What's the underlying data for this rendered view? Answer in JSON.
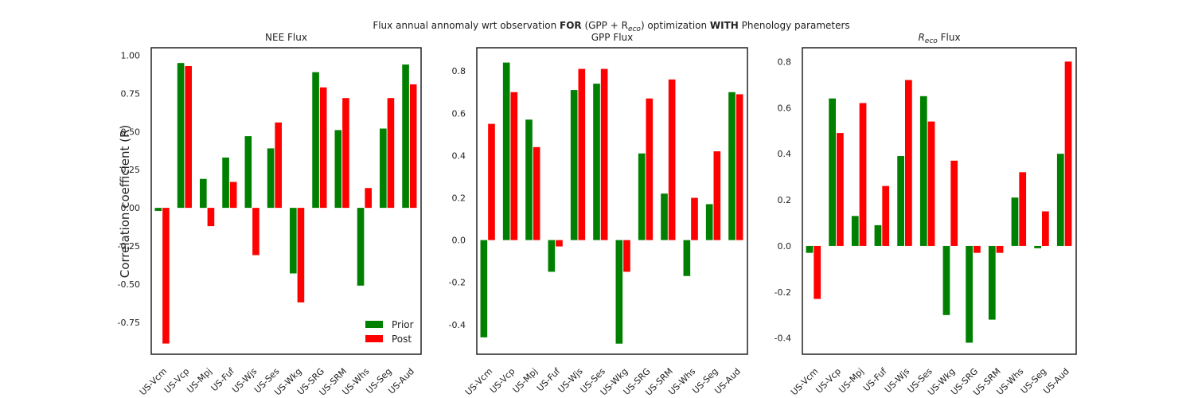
{
  "figure": {
    "suptitle_prefix": "Flux annual annomaly wrt observation ",
    "suptitle_bold1": "FOR",
    "suptitle_mid": " (GPP + R",
    "suptitle_sub": "eco",
    "suptitle_mid2": ") optimization ",
    "suptitle_bold2": "WITH",
    "suptitle_suffix": " Phenology parameters",
    "ylabel": "Correlation coefficient (R)"
  },
  "colors": {
    "prior": "#008000",
    "post": "#ff0000",
    "frame": "#222222"
  },
  "chart_data": [
    {
      "type": "bar",
      "title": "NEE Flux",
      "categories": [
        "US-Vcm",
        "US-Vcp",
        "US-Mpj",
        "US-Fuf",
        "US-Wjs",
        "US-Ses",
        "US-Wkg",
        "US-SRG",
        "US-SRM",
        "US-Whs",
        "US-Seg",
        "US-Aud"
      ],
      "series": [
        {
          "name": "Prior",
          "values": [
            -0.02,
            0.95,
            0.19,
            0.33,
            0.47,
            0.39,
            -0.43,
            0.89,
            0.51,
            -0.51,
            0.52,
            0.94
          ]
        },
        {
          "name": "Post",
          "values": [
            -0.89,
            0.93,
            -0.12,
            0.17,
            -0.31,
            0.56,
            -0.62,
            0.79,
            0.72,
            0.13,
            0.72,
            0.81
          ]
        }
      ],
      "ylim": [
        -0.96,
        1.05
      ],
      "yticks": [
        "-0.75",
        "-0.50",
        "-0.25",
        "0.00",
        "0.25",
        "0.50",
        "0.75",
        "1.00"
      ],
      "ytick_values": [
        -0.75,
        -0.5,
        -0.25,
        0,
        0.25,
        0.5,
        0.75,
        1.0
      ],
      "legend": "bottom-right"
    },
    {
      "type": "bar",
      "title": "GPP Flux",
      "categories": [
        "US-Vcm",
        "US-Vcp",
        "US-Mpj",
        "US-Fuf",
        "US-Wjs",
        "US-Ses",
        "US-Wkg",
        "US-SRG",
        "US-SRM",
        "US-Whs",
        "US-Seg",
        "US-Aud"
      ],
      "series": [
        {
          "name": "Prior",
          "values": [
            -0.46,
            0.84,
            0.57,
            -0.15,
            0.71,
            0.74,
            -0.49,
            0.41,
            0.22,
            -0.17,
            0.17,
            0.7
          ]
        },
        {
          "name": "Post",
          "values": [
            0.55,
            0.7,
            0.44,
            -0.03,
            0.81,
            0.81,
            -0.15,
            0.67,
            0.76,
            0.2,
            0.42,
            0.69
          ]
        }
      ],
      "ylim": [
        -0.54,
        0.91
      ],
      "yticks": [
        "-0.4",
        "-0.2",
        "0.0",
        "0.2",
        "0.4",
        "0.6",
        "0.8"
      ],
      "ytick_values": [
        -0.4,
        -0.2,
        0,
        0.2,
        0.4,
        0.6,
        0.8
      ]
    },
    {
      "type": "bar",
      "title_prefix": "R",
      "title_sub": "eco",
      "title_suffix": " Flux",
      "categories": [
        "US-Vcm",
        "US-Vcp",
        "US-Mpj",
        "US-Fuf",
        "US-Wjs",
        "US-Ses",
        "US-Wkg",
        "US-SRG",
        "US-SRM",
        "US-Whs",
        "US-Seg",
        "US-Aud"
      ],
      "series": [
        {
          "name": "Prior",
          "values": [
            -0.03,
            0.64,
            0.13,
            0.09,
            0.39,
            0.65,
            -0.3,
            -0.42,
            -0.32,
            0.21,
            -0.01,
            0.4
          ]
        },
        {
          "name": "Post",
          "values": [
            -0.23,
            0.49,
            0.62,
            0.26,
            0.72,
            0.54,
            0.37,
            -0.03,
            -0.03,
            0.32,
            0.15,
            0.8
          ]
        }
      ],
      "ylim": [
        -0.47,
        0.86
      ],
      "yticks": [
        "-0.4",
        "-0.2",
        "0.0",
        "0.2",
        "0.4",
        "0.6",
        "0.8"
      ],
      "ytick_values": [
        -0.4,
        -0.2,
        0,
        0.2,
        0.4,
        0.6,
        0.8
      ]
    }
  ]
}
